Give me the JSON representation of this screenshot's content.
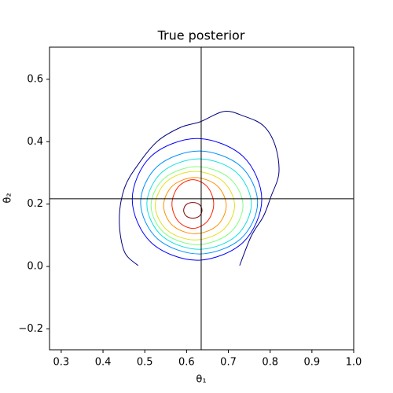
{
  "chart_data": {
    "type": "contour",
    "title": "True posterior",
    "x_label": "θ₁",
    "y_label": "θ₂",
    "xlim": [
      0.272,
      1.0
    ],
    "ylim": [
      -0.267,
      0.703
    ],
    "xticks": [
      0.3,
      0.4,
      0.5,
      0.6,
      0.7,
      0.8,
      0.9,
      {
        "value": 1,
        "label": "1.0"
      }
    ],
    "yticks": [
      {
        "value": -0.2,
        "label": "−0.2"
      },
      {
        "value": 0,
        "label": "0.0"
      },
      0.2,
      0.4,
      0.6
    ],
    "reference": {
      "x": 0.635,
      "y": 0.217,
      "color": "#000000"
    },
    "series": [
      {
        "color": "#00007f",
        "closed": false,
        "x": [
          0.484,
          0.451,
          0.439,
          0.451,
          0.483,
          0.53,
          0.586,
          0.633,
          0.69,
          0.737,
          0.784,
          0.812,
          0.821,
          0.802,
          0.784,
          0.755,
          0.727
        ],
        "y": [
          0.003,
          0.048,
          0.149,
          0.25,
          0.325,
          0.401,
          0.446,
          0.464,
          0.497,
          0.482,
          0.451,
          0.388,
          0.3,
          0.224,
          0.161,
          0.098,
          0.003
        ]
      },
      {
        "color": "#0000ff",
        "closed": true,
        "x": [
          0.78,
          0.735,
          0.625,
          0.515,
          0.47,
          0.515,
          0.625,
          0.735
        ],
        "y": [
          0.215,
          0.353,
          0.41,
          0.353,
          0.215,
          0.077,
          0.02,
          0.077
        ]
      },
      {
        "color": "#0090ff",
        "closed": true,
        "x": [
          0.77,
          0.729,
          0.63,
          0.531,
          0.49,
          0.531,
          0.63,
          0.729
        ],
        "y": [
          0.205,
          0.322,
          0.37,
          0.322,
          0.205,
          0.088,
          0.04,
          0.088
        ]
      },
      {
        "color": "#10e0e0",
        "closed": true,
        "x": [
          0.755,
          0.718,
          0.63,
          0.542,
          0.505,
          0.542,
          0.63,
          0.718
        ],
        "y": [
          0.2,
          0.303,
          0.345,
          0.303,
          0.2,
          0.097,
          0.055,
          0.097
        ]
      },
      {
        "color": "#80ff80",
        "closed": true,
        "x": [
          0.735,
          0.703,
          0.625,
          0.547,
          0.515,
          0.547,
          0.625,
          0.703
        ],
        "y": [
          0.195,
          0.283,
          0.32,
          0.283,
          0.195,
          0.107,
          0.07,
          0.107
        ]
      },
      {
        "color": "#e0e020",
        "closed": true,
        "x": [
          0.715,
          0.687,
          0.62,
          0.553,
          0.525,
          0.553,
          0.62,
          0.687
        ],
        "y": [
          0.195,
          0.273,
          0.305,
          0.273,
          0.195,
          0.117,
          0.085,
          0.117
        ]
      },
      {
        "color": "#ff9000",
        "closed": true,
        "x": [
          0.695,
          0.673,
          0.62,
          0.567,
          0.545,
          0.567,
          0.62,
          0.673
        ],
        "y": [
          0.195,
          0.259,
          0.285,
          0.259,
          0.195,
          0.131,
          0.105,
          0.131
        ]
      },
      {
        "color": "#ff2000",
        "closed": true,
        "x": [
          0.665,
          0.65,
          0.615,
          0.58,
          0.565,
          0.58,
          0.615,
          0.65
        ],
        "y": [
          0.2,
          0.255,
          0.278,
          0.255,
          0.2,
          0.145,
          0.122,
          0.145
        ]
      },
      {
        "color": "#800000",
        "closed": true,
        "x": [
          0.637,
          0.631,
          0.615,
          0.599,
          0.593,
          0.599,
          0.615,
          0.631
        ],
        "y": [
          0.18,
          0.198,
          0.205,
          0.198,
          0.18,
          0.162,
          0.155,
          0.162
        ]
      }
    ]
  }
}
